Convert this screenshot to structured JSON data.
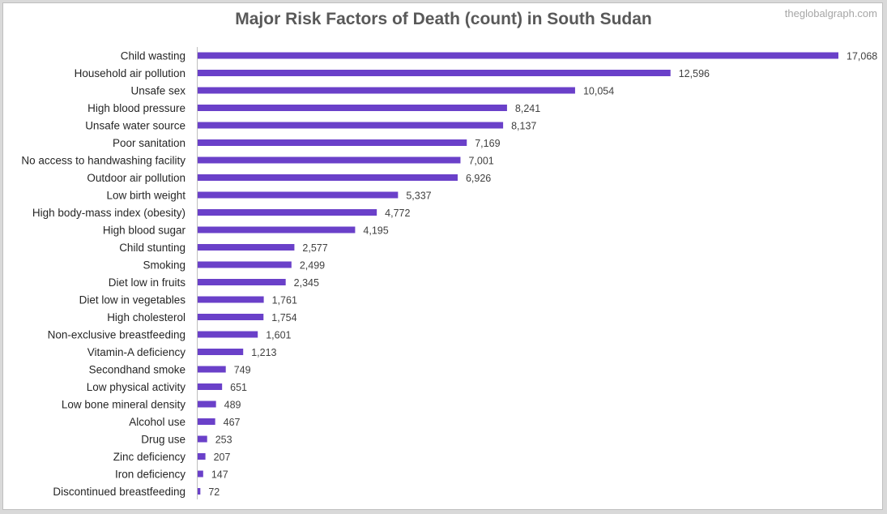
{
  "watermark": "theglobalgraph.com",
  "chart_data": {
    "type": "bar",
    "orientation": "horizontal",
    "title": "Major Risk Factors of Death (count) in South Sudan",
    "bar_color": "#6a40c9",
    "categories": [
      "Child wasting",
      "Household air pollution",
      "Unsafe sex",
      "High blood pressure",
      "Unsafe water source",
      "Poor sanitation",
      "No access to handwashing facility",
      "Outdoor air pollution",
      "Low birth weight",
      "High body-mass index (obesity)",
      "High blood sugar",
      "Child stunting",
      "Smoking",
      "Diet low in fruits",
      "Diet low in vegetables",
      "High cholesterol",
      "Non-exclusive breastfeeding",
      "Vitamin-A deficiency",
      "Secondhand smoke",
      "Low physical activity",
      "Low bone mineral density",
      "Alcohol use",
      "Drug use",
      "Zinc deficiency",
      "Iron deficiency",
      "Discontinued breastfeeding"
    ],
    "values": [
      17068,
      12596,
      10054,
      8241,
      8137,
      7169,
      7001,
      6926,
      5337,
      4772,
      4195,
      2577,
      2499,
      2345,
      1761,
      1754,
      1601,
      1213,
      749,
      651,
      489,
      467,
      253,
      207,
      147,
      72
    ],
    "value_labels": [
      "17,068",
      "12,596",
      "10,054",
      "8,241",
      "8,137",
      "7,169",
      "7,001",
      "6,926",
      "5,337",
      "4,772",
      "4,195",
      "2,577",
      "2,499",
      "2,345",
      "1,761",
      "1,754",
      "1,601",
      "1,213",
      "749",
      "651",
      "489",
      "467",
      "253",
      "207",
      "147",
      "72"
    ],
    "xlim": [
      0,
      17068
    ],
    "grid": false,
    "legend": "none"
  }
}
